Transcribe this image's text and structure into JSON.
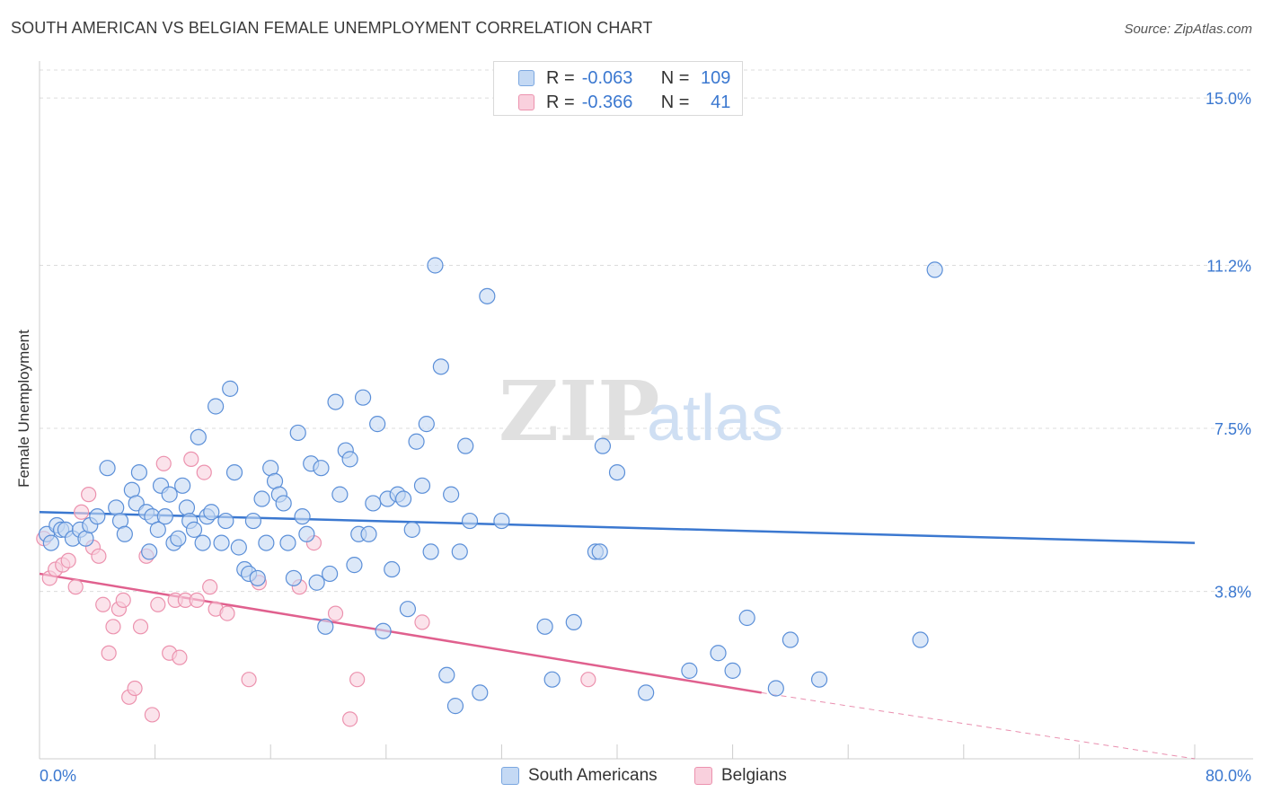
{
  "header": {
    "title": "SOUTH AMERICAN VS BELGIAN FEMALE UNEMPLOYMENT CORRELATION CHART",
    "source": "Source: ZipAtlas.com"
  },
  "watermark": {
    "zip": "ZIP",
    "atlas": "atlas"
  },
  "legend": {
    "rows": [
      {
        "r_label": "R =",
        "r_value": "-0.063",
        "n_label": "N =",
        "n_value": "109",
        "color": "#7ba7e0"
      },
      {
        "r_label": "R =",
        "r_value": "-0.366",
        "n_label": "N =",
        "n_value": "41",
        "color": "#ec92ae"
      }
    ]
  },
  "bottom_legend": {
    "items": [
      {
        "label": "South Americans",
        "color": "#7ba7e0"
      },
      {
        "label": "Belgians",
        "color": "#ec92ae"
      }
    ]
  },
  "chart_data": {
    "type": "scatter",
    "title": "SOUTH AMERICAN VS BELGIAN FEMALE UNEMPLOYMENT CORRELATION CHART",
    "xlabel": "",
    "ylabel": "Female Unemployment",
    "xlim": [
      0,
      80
    ],
    "ylim": [
      0,
      16
    ],
    "x_tick_labels": [
      "0.0%",
      "80.0%"
    ],
    "y_ticks": [
      3.8,
      7.5,
      11.2,
      15.0
    ],
    "y_tick_labels": [
      "3.8%",
      "7.5%",
      "11.2%",
      "15.0%"
    ],
    "grid": "horizontal dashed",
    "legend_position": "top-center",
    "colors": {
      "south_americans": "#3b78d0",
      "belgians": "#e0608e",
      "axis_text": "#3b78d0"
    },
    "series": [
      {
        "name": "South Americans",
        "r": -0.063,
        "n": 109,
        "trend": {
          "x0": 0,
          "y0": 5.6,
          "x1": 80,
          "y1": 4.9
        },
        "points": [
          [
            0.5,
            5.1
          ],
          [
            0.8,
            4.9
          ],
          [
            1.2,
            5.3
          ],
          [
            1.5,
            5.2
          ],
          [
            1.8,
            5.2
          ],
          [
            2.3,
            5.0
          ],
          [
            2.8,
            5.2
          ],
          [
            3.2,
            5.0
          ],
          [
            3.5,
            5.3
          ],
          [
            4.0,
            5.5
          ],
          [
            4.7,
            6.6
          ],
          [
            5.3,
            5.7
          ],
          [
            5.6,
            5.4
          ],
          [
            5.9,
            5.1
          ],
          [
            6.4,
            6.1
          ],
          [
            6.7,
            5.8
          ],
          [
            6.9,
            6.5
          ],
          [
            7.4,
            5.6
          ],
          [
            7.6,
            4.7
          ],
          [
            7.8,
            5.5
          ],
          [
            8.2,
            5.2
          ],
          [
            8.4,
            6.2
          ],
          [
            8.7,
            5.5
          ],
          [
            9.0,
            6.0
          ],
          [
            9.3,
            4.9
          ],
          [
            9.6,
            5.0
          ],
          [
            9.9,
            6.2
          ],
          [
            10.2,
            5.7
          ],
          [
            10.4,
            5.4
          ],
          [
            10.7,
            5.2
          ],
          [
            11.0,
            7.3
          ],
          [
            11.3,
            4.9
          ],
          [
            11.6,
            5.5
          ],
          [
            11.9,
            5.6
          ],
          [
            12.2,
            8.0
          ],
          [
            12.6,
            4.9
          ],
          [
            12.9,
            5.4
          ],
          [
            13.2,
            8.4
          ],
          [
            13.5,
            6.5
          ],
          [
            13.8,
            4.8
          ],
          [
            14.2,
            4.3
          ],
          [
            14.5,
            4.2
          ],
          [
            14.8,
            5.4
          ],
          [
            15.1,
            4.1
          ],
          [
            15.4,
            5.9
          ],
          [
            15.7,
            4.9
          ],
          [
            16.0,
            6.6
          ],
          [
            16.3,
            6.3
          ],
          [
            16.6,
            6.0
          ],
          [
            16.9,
            5.8
          ],
          [
            17.2,
            4.9
          ],
          [
            17.6,
            4.1
          ],
          [
            17.9,
            7.4
          ],
          [
            18.2,
            5.5
          ],
          [
            18.5,
            5.1
          ],
          [
            18.8,
            6.7
          ],
          [
            19.2,
            4.0
          ],
          [
            19.5,
            6.6
          ],
          [
            19.8,
            3.0
          ],
          [
            20.1,
            4.2
          ],
          [
            20.5,
            8.1
          ],
          [
            20.8,
            6.0
          ],
          [
            21.2,
            7.0
          ],
          [
            21.5,
            6.8
          ],
          [
            21.8,
            4.4
          ],
          [
            22.1,
            5.1
          ],
          [
            22.4,
            8.2
          ],
          [
            22.8,
            5.1
          ],
          [
            23.1,
            5.8
          ],
          [
            23.4,
            7.6
          ],
          [
            23.8,
            2.9
          ],
          [
            24.1,
            5.9
          ],
          [
            24.4,
            4.3
          ],
          [
            24.8,
            6.0
          ],
          [
            25.2,
            5.9
          ],
          [
            25.5,
            3.4
          ],
          [
            25.8,
            5.2
          ],
          [
            26.1,
            7.2
          ],
          [
            26.5,
            6.2
          ],
          [
            26.8,
            7.6
          ],
          [
            27.1,
            4.7
          ],
          [
            27.4,
            11.2
          ],
          [
            27.8,
            8.9
          ],
          [
            28.2,
            1.9
          ],
          [
            28.5,
            6.0
          ],
          [
            28.8,
            1.2
          ],
          [
            29.1,
            4.7
          ],
          [
            29.5,
            7.1
          ],
          [
            29.8,
            5.4
          ],
          [
            30.5,
            1.5
          ],
          [
            31.0,
            10.5
          ],
          [
            32.0,
            5.4
          ],
          [
            35.0,
            3.0
          ],
          [
            35.5,
            1.8
          ],
          [
            37.0,
            3.1
          ],
          [
            38.5,
            4.7
          ],
          [
            38.8,
            4.7
          ],
          [
            39.0,
            7.1
          ],
          [
            40.0,
            6.5
          ],
          [
            42.0,
            1.5
          ],
          [
            45.0,
            2.0
          ],
          [
            47.0,
            2.4
          ],
          [
            48.0,
            2.0
          ],
          [
            49.0,
            3.2
          ],
          [
            51.0,
            1.6
          ],
          [
            52.0,
            2.7
          ],
          [
            54.0,
            1.8
          ],
          [
            62.0,
            11.1
          ],
          [
            61.0,
            2.7
          ]
        ]
      },
      {
        "name": "Belgians",
        "r": -0.366,
        "n": 41,
        "trend": {
          "x0": 0,
          "y0": 4.2,
          "x1": 50,
          "y1": 1.5
        },
        "trend_extension": {
          "x0": 50,
          "y0": 1.5,
          "x1": 80,
          "y1": 0.0
        },
        "points": [
          [
            0.3,
            5.0
          ],
          [
            0.7,
            4.1
          ],
          [
            1.1,
            4.3
          ],
          [
            1.6,
            4.4
          ],
          [
            2.0,
            4.5
          ],
          [
            2.5,
            3.9
          ],
          [
            2.9,
            5.6
          ],
          [
            3.4,
            6.0
          ],
          [
            3.7,
            4.8
          ],
          [
            4.1,
            4.6
          ],
          [
            4.4,
            3.5
          ],
          [
            4.8,
            2.4
          ],
          [
            5.1,
            3.0
          ],
          [
            5.5,
            3.4
          ],
          [
            5.8,
            3.6
          ],
          [
            6.2,
            1.4
          ],
          [
            6.6,
            1.6
          ],
          [
            7.0,
            3.0
          ],
          [
            7.4,
            4.6
          ],
          [
            7.8,
            1.0
          ],
          [
            8.2,
            3.5
          ],
          [
            8.6,
            6.7
          ],
          [
            9.0,
            2.4
          ],
          [
            9.4,
            3.6
          ],
          [
            9.7,
            2.3
          ],
          [
            10.1,
            3.6
          ],
          [
            10.5,
            6.8
          ],
          [
            10.9,
            3.6
          ],
          [
            11.4,
            6.5
          ],
          [
            11.8,
            3.9
          ],
          [
            12.2,
            3.4
          ],
          [
            13.0,
            3.3
          ],
          [
            14.5,
            1.8
          ],
          [
            15.2,
            4.0
          ],
          [
            18.0,
            3.9
          ],
          [
            19.0,
            4.9
          ],
          [
            20.5,
            3.3
          ],
          [
            21.5,
            0.9
          ],
          [
            22.0,
            1.8
          ],
          [
            26.5,
            3.1
          ],
          [
            38.0,
            1.8
          ]
        ]
      }
    ]
  }
}
